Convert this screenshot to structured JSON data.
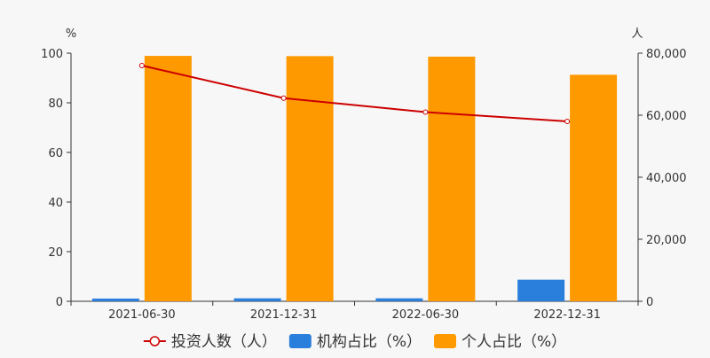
{
  "chart_data": {
    "type": "bar",
    "categories": [
      "2021-06-30",
      "2021-12-31",
      "2022-06-30",
      "2022-12-31"
    ],
    "left_axis": {
      "unit": "%",
      "ylim": [
        0,
        100
      ],
      "ticks": [
        "0",
        "20",
        "40",
        "60",
        "80",
        "100"
      ]
    },
    "right_axis": {
      "unit": "人",
      "ylim": [
        0,
        80000
      ],
      "ticks": [
        "0",
        "20,000",
        "40,000",
        "60,000",
        "80,000"
      ]
    },
    "series": [
      {
        "name": "投资人数（人）",
        "type": "line",
        "axis": "right",
        "color": "#cc0000",
        "values": [
          76000,
          65500,
          61000,
          58000
        ]
      },
      {
        "name": "机构占比（%）",
        "type": "bar",
        "axis": "left",
        "color": "#2b7fdc",
        "values": [
          1.1,
          1.2,
          1.2,
          8.7
        ]
      },
      {
        "name": "个人占比（%）",
        "type": "bar",
        "axis": "left",
        "color": "#ff9900",
        "values": [
          98.9,
          98.8,
          98.6,
          91.3
        ]
      }
    ],
    "grid": false,
    "legend_position": "bottom"
  }
}
